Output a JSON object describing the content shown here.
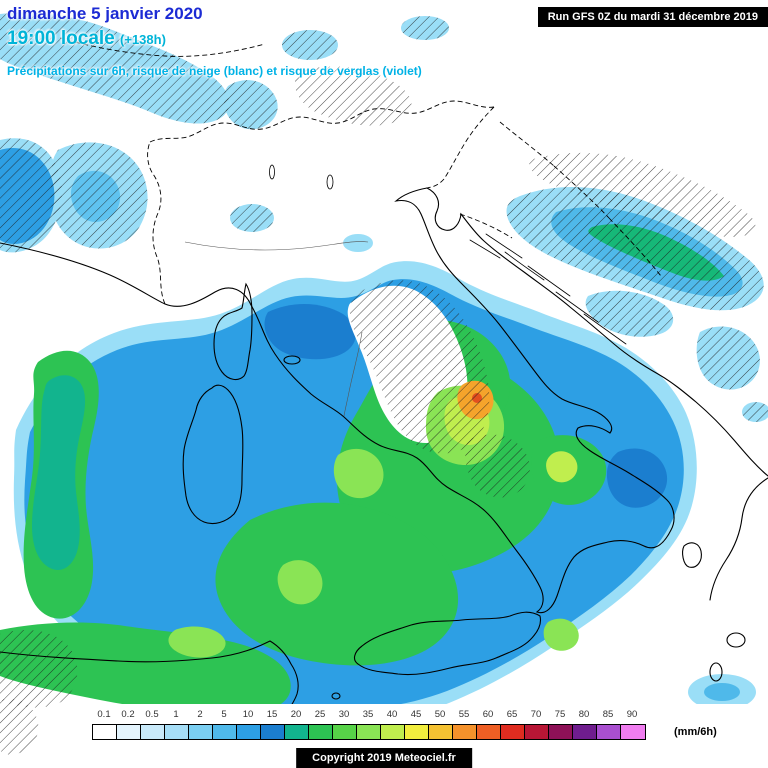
{
  "header": {
    "date": "dimanche 5 janvier 2020",
    "time": "19:00 locale",
    "offset": "(+138h)",
    "description": "Précipitations sur 6h, risque de neige (blanc) et risque de verglas (violet)"
  },
  "run_info": "Run GFS 0Z du mardi 31 décembre 2019",
  "copyright": "Copyright 2019 Meteociel.fr",
  "colors": {
    "date_text": "#1c2bd4",
    "time_text": "#00b4d8",
    "description_text": "#00b2e6",
    "run_info_bg": "#000000",
    "run_info_text": "#ffffff",
    "snow_hatch_lines": "#1b1b1b"
  },
  "legend": {
    "unit": "(mm/6h)",
    "entries": [
      {
        "value": "0.1",
        "color": "#ffffff"
      },
      {
        "value": "0.2",
        "color": "#e4f4fd"
      },
      {
        "value": "0.5",
        "color": "#c9eafa"
      },
      {
        "value": "1",
        "color": "#a6def7"
      },
      {
        "value": "2",
        "color": "#7bcff2"
      },
      {
        "value": "5",
        "color": "#4fb9ea"
      },
      {
        "value": "10",
        "color": "#2d9fe4"
      },
      {
        "value": "15",
        "color": "#1b7ecf"
      },
      {
        "value": "20",
        "color": "#12b48e"
      },
      {
        "value": "25",
        "color": "#2dc353"
      },
      {
        "value": "30",
        "color": "#57d348"
      },
      {
        "value": "35",
        "color": "#8ae455"
      },
      {
        "value": "40",
        "color": "#c0ee4e"
      },
      {
        "value": "45",
        "color": "#f2ee3e"
      },
      {
        "value": "50",
        "color": "#f5c232"
      },
      {
        "value": "55",
        "color": "#f5922b"
      },
      {
        "value": "60",
        "color": "#ef5f24"
      },
      {
        "value": "65",
        "color": "#e02c20"
      },
      {
        "value": "70",
        "color": "#b81635"
      },
      {
        "value": "75",
        "color": "#8e1157"
      },
      {
        "value": "80",
        "color": "#6f1d8e"
      },
      {
        "value": "85",
        "color": "#a94fd0"
      },
      {
        "value": "90",
        "color": "#f07df0"
      }
    ]
  }
}
